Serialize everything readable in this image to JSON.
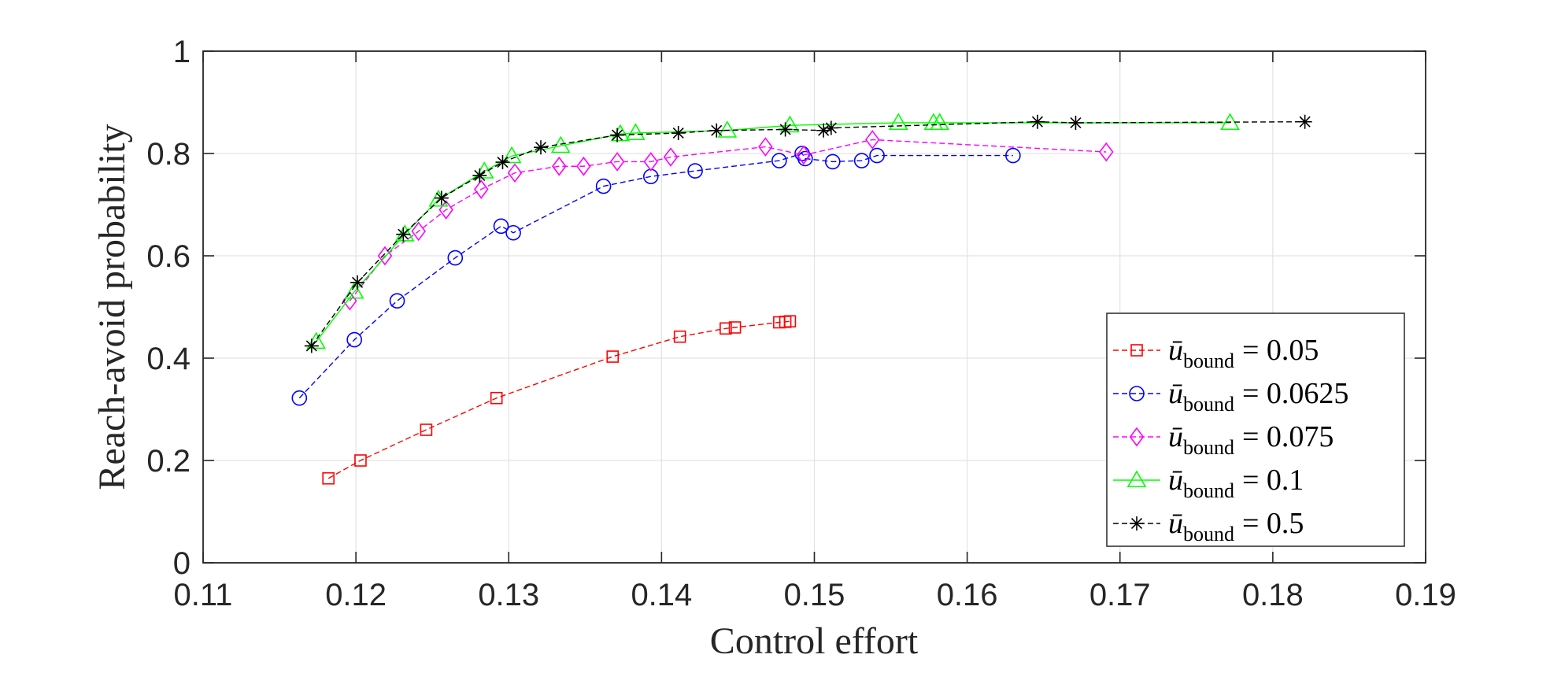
{
  "chart_data": {
    "type": "line",
    "xlabel": "Control effort",
    "ylabel": "Reach-avoid probability",
    "xlim": [
      0.11,
      0.19
    ],
    "ylim": [
      0,
      1
    ],
    "xticks": [
      0.11,
      0.12,
      0.13,
      0.14,
      0.15,
      0.16,
      0.17,
      0.18,
      0.19
    ],
    "xtick_labels": [
      "0.11",
      "0.12",
      "0.13",
      "0.14",
      "0.15",
      "0.16",
      "0.17",
      "0.18",
      "0.19"
    ],
    "yticks": [
      0,
      0.2,
      0.4,
      0.6,
      0.8,
      1
    ],
    "ytick_labels": [
      "0",
      "0.2",
      "0.4",
      "0.6",
      "0.8",
      "1"
    ],
    "grid": true,
    "legend_position": "bottom-right",
    "series": [
      {
        "name": "ū_bound = 0.05",
        "legend_symbol": "ū",
        "legend_subscript": "bound",
        "legend_value": "= 0.05",
        "color": "#FF0000",
        "marker": "square",
        "line_style": "dashed",
        "points": [
          [
            0.1182,
            0.165
          ],
          [
            0.1203,
            0.2
          ],
          [
            0.1246,
            0.26
          ],
          [
            0.1292,
            0.322
          ],
          [
            0.1368,
            0.403
          ],
          [
            0.1412,
            0.442
          ],
          [
            0.1442,
            0.458
          ],
          [
            0.1448,
            0.46
          ],
          [
            0.1477,
            0.47
          ],
          [
            0.1481,
            0.471
          ],
          [
            0.1484,
            0.472
          ]
        ]
      },
      {
        "name": "ū_bound = 0.0625",
        "legend_symbol": "ū",
        "legend_subscript": "bound",
        "legend_value": "= 0.0625",
        "color": "#0000FF",
        "marker": "circle",
        "line_style": "dashed",
        "points": [
          [
            0.1163,
            0.322
          ],
          [
            0.1199,
            0.436
          ],
          [
            0.1227,
            0.512
          ],
          [
            0.1265,
            0.596
          ],
          [
            0.1295,
            0.658
          ],
          [
            0.1303,
            0.645
          ],
          [
            0.1362,
            0.736
          ],
          [
            0.1393,
            0.755
          ],
          [
            0.1422,
            0.766
          ],
          [
            0.1477,
            0.786
          ],
          [
            0.1492,
            0.8
          ],
          [
            0.1494,
            0.79
          ],
          [
            0.1512,
            0.784
          ],
          [
            0.1531,
            0.786
          ],
          [
            0.1541,
            0.796
          ],
          [
            0.163,
            0.796
          ]
        ]
      },
      {
        "name": "ū_bound = 0.075",
        "legend_symbol": "ū",
        "legend_subscript": "bound",
        "legend_value": "= 0.075",
        "color": "#FF00FF",
        "marker": "diamond",
        "line_style": "dashed",
        "points": [
          [
            0.1196,
            0.512
          ],
          [
            0.1219,
            0.6
          ],
          [
            0.1241,
            0.648
          ],
          [
            0.1259,
            0.69
          ],
          [
            0.1282,
            0.73
          ],
          [
            0.1304,
            0.762
          ],
          [
            0.1333,
            0.775
          ],
          [
            0.1349,
            0.775
          ],
          [
            0.1371,
            0.784
          ],
          [
            0.1393,
            0.784
          ],
          [
            0.1406,
            0.793
          ],
          [
            0.1468,
            0.813
          ],
          [
            0.1493,
            0.797
          ],
          [
            0.1538,
            0.827
          ],
          [
            0.1691,
            0.803
          ]
        ]
      },
      {
        "name": "ū_bound = 0.1",
        "legend_symbol": "ū",
        "legend_subscript": "bound",
        "legend_value": "= 0.1",
        "color": "#00FF00",
        "marker": "triangle",
        "line_style": "solid",
        "points": [
          [
            0.1174,
            0.432
          ],
          [
            0.1199,
            0.53
          ],
          [
            0.1232,
            0.642
          ],
          [
            0.1254,
            0.71
          ],
          [
            0.1284,
            0.765
          ],
          [
            0.1302,
            0.795
          ],
          [
            0.1334,
            0.815
          ],
          [
            0.1373,
            0.838
          ],
          [
            0.1383,
            0.84
          ],
          [
            0.1443,
            0.845
          ],
          [
            0.1484,
            0.855
          ],
          [
            0.1555,
            0.86
          ],
          [
            0.1578,
            0.86
          ],
          [
            0.1582,
            0.86
          ],
          [
            0.1772,
            0.86
          ]
        ]
      },
      {
        "name": "ū_bound = 0.5",
        "legend_symbol": "ū",
        "legend_subscript": "bound",
        "legend_value": "= 0.5",
        "color": "#000000",
        "marker": "asterisk",
        "line_style": "dashed",
        "points": [
          [
            0.1171,
            0.424
          ],
          [
            0.1201,
            0.548
          ],
          [
            0.1231,
            0.642
          ],
          [
            0.1256,
            0.713
          ],
          [
            0.1281,
            0.757
          ],
          [
            0.1296,
            0.783
          ],
          [
            0.1321,
            0.812
          ],
          [
            0.1371,
            0.836
          ],
          [
            0.1411,
            0.84
          ],
          [
            0.1436,
            0.845
          ],
          [
            0.1481,
            0.847
          ],
          [
            0.1506,
            0.845
          ],
          [
            0.1511,
            0.85
          ],
          [
            0.1646,
            0.862
          ],
          [
            0.1671,
            0.86
          ],
          [
            0.1821,
            0.862
          ]
        ]
      }
    ]
  }
}
